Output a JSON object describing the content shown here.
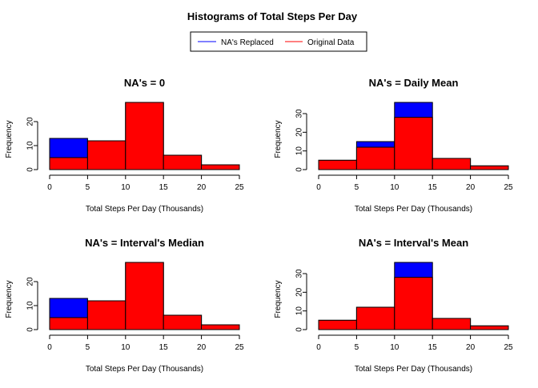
{
  "figure": {
    "title": "Histograms of Total Steps Per Day",
    "legend": {
      "position": "top-center",
      "entries": [
        {
          "label": "NA's Replaced",
          "color": "#0000ff"
        },
        {
          "label": "Original Data",
          "color": "#ff0000"
        }
      ]
    }
  },
  "chart_data": [
    {
      "type": "bar",
      "title": "NA's = 0",
      "xlabel": "Total Steps Per Day (Thousands)",
      "ylabel": "Frequency",
      "bin_edges": [
        0,
        5,
        10,
        15,
        20,
        25
      ],
      "xticks": [
        "0",
        "5",
        "10",
        "15",
        "20",
        "25"
      ],
      "yticks": [
        0,
        10,
        20
      ],
      "ylim": [
        0,
        28
      ],
      "series": [
        {
          "name": "NA's Replaced",
          "color": "#0000ff",
          "values": [
            13,
            12,
            28,
            6,
            2
          ]
        },
        {
          "name": "Original Data",
          "color": "#ff0000",
          "values": [
            5,
            12,
            28,
            6,
            2
          ]
        }
      ]
    },
    {
      "type": "bar",
      "title": "NA's = Daily Mean",
      "xlabel": "Total Steps Per Day (Thousands)",
      "ylabel": "Frequency",
      "bin_edges": [
        0,
        5,
        10,
        15,
        20,
        25
      ],
      "xticks": [
        "0",
        "5",
        "10",
        "15",
        "20",
        "25"
      ],
      "yticks": [
        0,
        10,
        20,
        30
      ],
      "ylim": [
        0,
        36
      ],
      "series": [
        {
          "name": "NA's Replaced",
          "color": "#0000ff",
          "values": [
            5,
            15,
            36,
            6,
            2
          ]
        },
        {
          "name": "Original Data",
          "color": "#ff0000",
          "values": [
            5,
            12,
            28,
            6,
            2
          ]
        }
      ]
    },
    {
      "type": "bar",
      "title": "NA's = Interval's Median",
      "xlabel": "Total Steps Per Day (Thousands)",
      "ylabel": "Frequency",
      "bin_edges": [
        0,
        5,
        10,
        15,
        20,
        25
      ],
      "xticks": [
        "0",
        "5",
        "10",
        "15",
        "20",
        "25"
      ],
      "yticks": [
        0,
        10,
        20
      ],
      "ylim": [
        0,
        28
      ],
      "series": [
        {
          "name": "NA's Replaced",
          "color": "#0000ff",
          "values": [
            13,
            12,
            28,
            6,
            2
          ]
        },
        {
          "name": "Original Data",
          "color": "#ff0000",
          "values": [
            5,
            12,
            28,
            6,
            2
          ]
        }
      ]
    },
    {
      "type": "bar",
      "title": "NA's = Interval's Mean",
      "xlabel": "Total Steps Per Day (Thousands)",
      "ylabel": "Frequency",
      "bin_edges": [
        0,
        5,
        10,
        15,
        20,
        25
      ],
      "xticks": [
        "0",
        "5",
        "10",
        "15",
        "20",
        "25"
      ],
      "yticks": [
        0,
        10,
        20,
        30
      ],
      "ylim": [
        0,
        36
      ],
      "series": [
        {
          "name": "NA's Replaced",
          "color": "#0000ff",
          "values": [
            5,
            12,
            36,
            6,
            2
          ]
        },
        {
          "name": "Original Data",
          "color": "#ff0000",
          "values": [
            5,
            12,
            28,
            6,
            2
          ]
        }
      ]
    }
  ]
}
